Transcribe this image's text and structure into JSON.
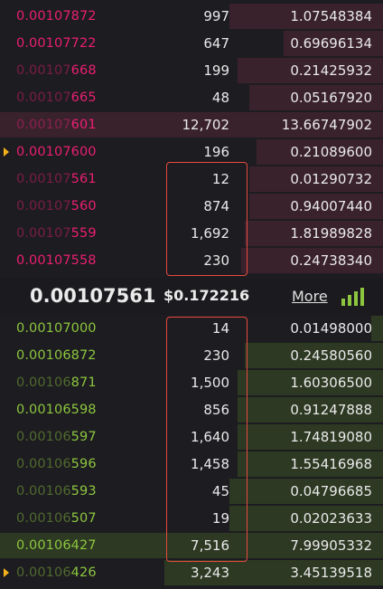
{
  "asks": [
    {
      "price_bright": "0.00107872",
      "price_dim": "",
      "amount": "997",
      "total": "1.07548384",
      "depth": 0.4
    },
    {
      "price_bright": "0.00107722",
      "price_dim": "",
      "amount": "647",
      "total": "0.69696134",
      "depth": 0.26
    },
    {
      "price_dim": "0.00107",
      "price_bright": "668",
      "amount": "199",
      "total": "0.21425932",
      "depth": 0.38
    },
    {
      "price_dim": "0.00107",
      "price_bright": "665",
      "amount": "48",
      "total": "0.05167920",
      "depth": 0.35
    },
    {
      "price_dim": "0.00107",
      "price_bright": "601",
      "amount": "12,702",
      "total": "13.66747902",
      "depth": 1.0
    },
    {
      "price_bright": "0.00107600",
      "price_dim": "",
      "amount": "196",
      "total": "0.21089600",
      "depth": 0.33,
      "marker": true
    },
    {
      "price_dim": "0.00107",
      "price_bright": "561",
      "amount": "12",
      "total": "0.01290732",
      "depth": 0.35
    },
    {
      "price_dim": "0.00107",
      "price_bright": "560",
      "amount": "874",
      "total": "0.94007440",
      "depth": 0.35
    },
    {
      "price_dim": "0.00107",
      "price_bright": "559",
      "amount": "1,692",
      "total": "1.81989828",
      "depth": 0.36
    },
    {
      "price_bright": "0.00107558",
      "price_dim": "",
      "amount": "230",
      "total": "0.24738340",
      "depth": 0.37
    }
  ],
  "mid": {
    "price": "0.00107561",
    "usd": "$0.172216",
    "more_label": "More"
  },
  "bids": [
    {
      "price_bright": "0.00107000",
      "price_dim": "",
      "amount": "14",
      "total": "0.01498000",
      "depth": 0.03
    },
    {
      "price_bright": "0.00106872",
      "price_dim": "",
      "amount": "230",
      "total": "0.24580560",
      "depth": 0.36
    },
    {
      "price_dim": "0.00106",
      "price_bright": "871",
      "amount": "1,500",
      "total": "1.60306500",
      "depth": 0.38
    },
    {
      "price_bright": "0.00106598",
      "price_dim": "",
      "amount": "856",
      "total": "0.91247888",
      "depth": 0.38
    },
    {
      "price_dim": "0.00106",
      "price_bright": "597",
      "amount": "1,640",
      "total": "1.74819080",
      "depth": 0.38
    },
    {
      "price_dim": "0.00106",
      "price_bright": "596",
      "amount": "1,458",
      "total": "1.55416968",
      "depth": 0.38
    },
    {
      "price_dim": "0.00106",
      "price_bright": "593",
      "amount": "45",
      "total": "0.04796685",
      "depth": 0.4
    },
    {
      "price_dim": "0.00106",
      "price_bright": "507",
      "amount": "19",
      "total": "0.02023633",
      "depth": 0.4
    },
    {
      "price_bright": "0.00106427",
      "price_dim": "",
      "amount": "7,516",
      "total": "7.99905332",
      "depth": 1.0
    },
    {
      "price_dim": "0.00106",
      "price_bright": "426",
      "amount": "3,243",
      "total": "3.45139518",
      "depth": 0.57,
      "marker": true
    }
  ],
  "colors": {
    "ask": "#ea1f72",
    "bid": "#8cc63f",
    "highlight": "#e8493f",
    "marker": "#f5b21a"
  },
  "icons": {
    "signal": "signal-bars-icon",
    "marker": "triangle-right-icon"
  }
}
